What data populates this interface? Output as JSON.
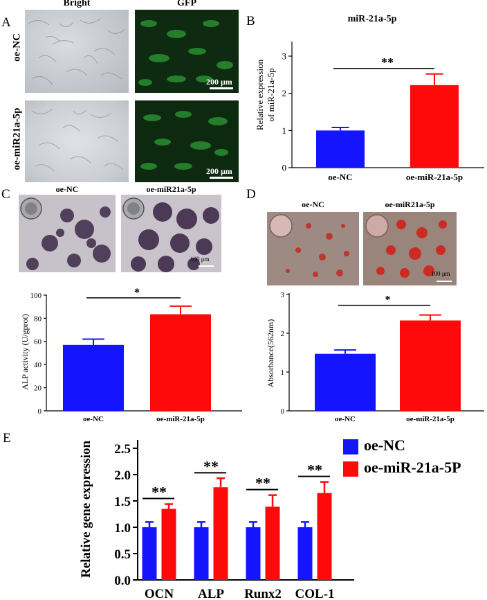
{
  "panels": {
    "a": "A",
    "b": "B",
    "c": "C",
    "d": "D",
    "e": "E"
  },
  "panel_a": {
    "col_headers": [
      "Bright",
      "GFP"
    ],
    "row_labels": [
      "oe-NC",
      "oe-miR21a-5p"
    ],
    "scale_labels": [
      "200 μm",
      "200 μm"
    ]
  },
  "panel_c": {
    "image_headers": [
      "oe-NC",
      "oe-miR21a-5p"
    ],
    "scale_label": "100 μm"
  },
  "panel_d": {
    "image_headers": [
      "oe-NC",
      "oe-miR21a-5p"
    ],
    "scale_label": "100 μm"
  },
  "colors": {
    "nc": "#1414ff",
    "oe": "#ff0a0a",
    "gfp": "#1f8a2a"
  },
  "chart_data": [
    {
      "id": "B",
      "type": "bar",
      "title": "miR-21a-5p",
      "ylabel": "Relative expression of miR-21a-5p",
      "ylabel_lines": [
        "Relative expression",
        "of miR-21a-5p"
      ],
      "categories": [
        "oe-NC",
        "oe-miR-21a-5p"
      ],
      "values": [
        1.0,
        2.22
      ],
      "errors": [
        0.08,
        0.3
      ],
      "ylim": [
        0,
        3
      ],
      "yticks": [
        "0",
        "1",
        "2",
        "3"
      ],
      "significance": "**"
    },
    {
      "id": "C",
      "type": "bar",
      "ylabel": "ALP activity (U/gprot)",
      "categories": [
        "oe-NC",
        "oe-miR-21a-5p"
      ],
      "values": [
        57,
        83.5
      ],
      "errors": [
        5,
        7
      ],
      "ylim": [
        0,
        100
      ],
      "yticks": [
        "0",
        "20",
        "40",
        "60",
        "80",
        "100"
      ],
      "significance": "*"
    },
    {
      "id": "D",
      "type": "bar",
      "ylabel": "Absorbance(562nm)",
      "categories": [
        "oe-NC",
        "oe-miR-21a-5p"
      ],
      "values": [
        1.47,
        2.33
      ],
      "errors": [
        0.1,
        0.14
      ],
      "ylim": [
        0,
        3
      ],
      "yticks": [
        "0",
        "1",
        "2",
        "3"
      ],
      "significance": "*"
    },
    {
      "id": "E",
      "type": "bar",
      "ylabel": "Relative gene expression",
      "categories": [
        "OCN",
        "ALP",
        "Runx2",
        "COL-1"
      ],
      "series": [
        {
          "name": "oe-NC",
          "values": [
            1.0,
            1.0,
            1.0,
            1.0
          ],
          "errors": [
            0.1,
            0.1,
            0.1,
            0.1
          ]
        },
        {
          "name": "oe-miR-21a-5P",
          "values": [
            1.35,
            1.76,
            1.39,
            1.65
          ],
          "errors": [
            0.09,
            0.17,
            0.22,
            0.21
          ]
        }
      ],
      "ylim": [
        0,
        2.5
      ],
      "yticks": [
        "0.0",
        "0.5",
        "1.0",
        "1.5",
        "2.0",
        "2.5"
      ],
      "significance": [
        "**",
        "**",
        "**",
        "**"
      ],
      "legend": "top-right"
    }
  ]
}
